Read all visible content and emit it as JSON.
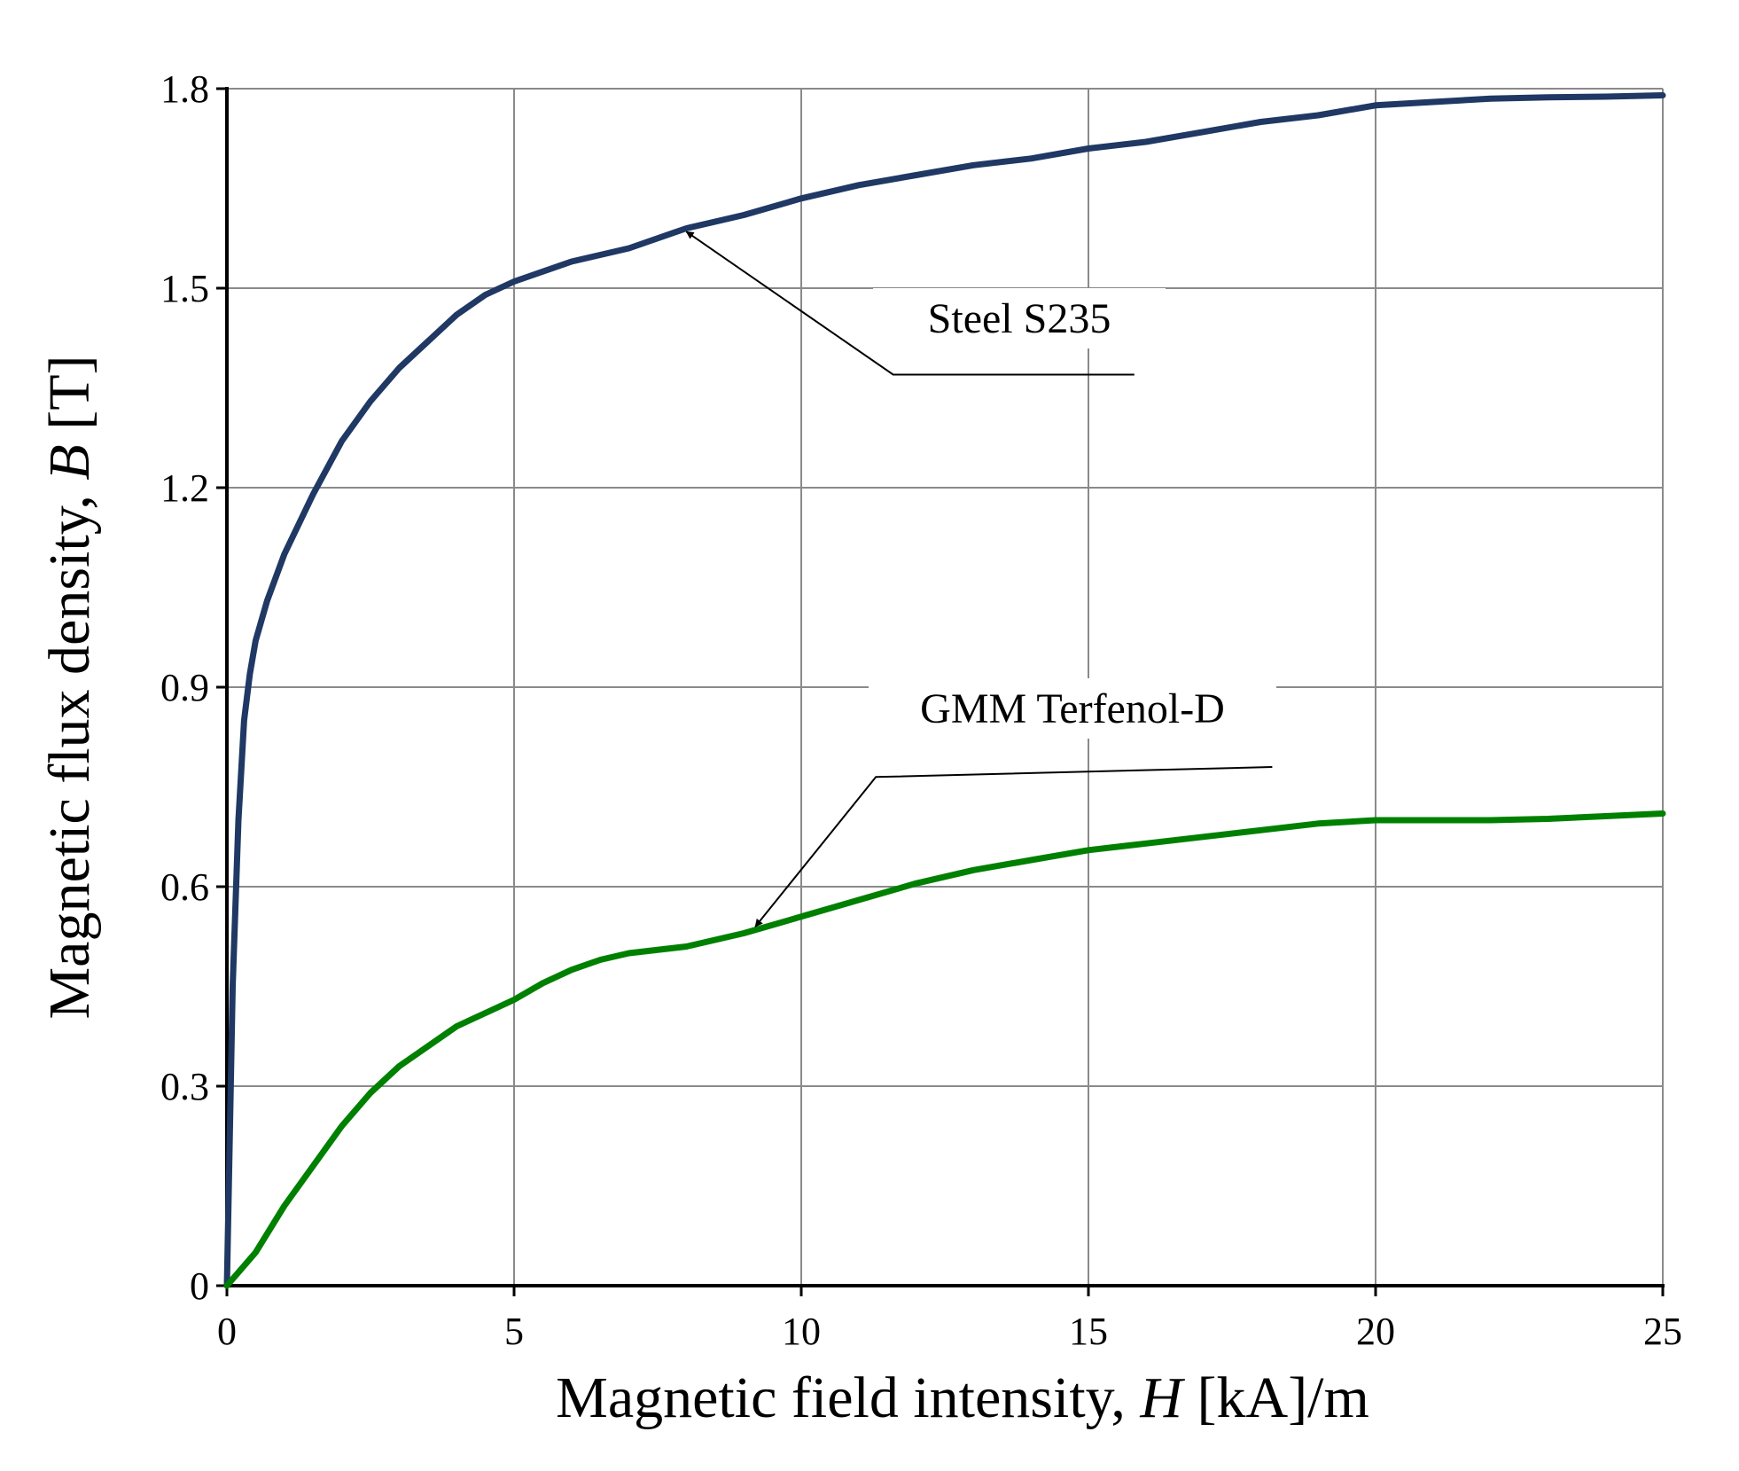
{
  "chart_data": {
    "type": "line",
    "title": "",
    "xlabel": {
      "prefix": "Magnetic field intensity, ",
      "var": "H",
      "suffix": " [kA]/m"
    },
    "ylabel": {
      "prefix": "Magnetic flux density, ",
      "var": "B",
      "suffix": " [T]"
    },
    "xlim": [
      0,
      25
    ],
    "ylim": [
      0,
      1.8
    ],
    "xticks": [
      0,
      5,
      10,
      15,
      20,
      25
    ],
    "yticks": [
      0,
      0.3,
      0.6,
      0.9,
      1.2,
      1.5,
      1.8
    ],
    "xtick_labels": [
      "0",
      "5",
      "10",
      "15",
      "20",
      "25"
    ],
    "ytick_labels": [
      "0",
      "0.3",
      "0.6",
      "0.9",
      "1.2",
      "1.5",
      "1.8"
    ],
    "grid": true,
    "series": [
      {
        "name": "Steel S235",
        "color": "#1f3864",
        "x": [
          0,
          0.1,
          0.2,
          0.3,
          0.4,
          0.5,
          0.7,
          1.0,
          1.5,
          2.0,
          2.5,
          3.0,
          3.5,
          4.0,
          4.5,
          5.0,
          6.0,
          7.0,
          8.0,
          9.0,
          10.0,
          11.0,
          12.0,
          13.0,
          14.0,
          15.0,
          16.0,
          17.0,
          18.0,
          19.0,
          20.0,
          21.0,
          22.0,
          23.0,
          24.0,
          25.0
        ],
        "y": [
          0,
          0.45,
          0.7,
          0.85,
          0.92,
          0.97,
          1.03,
          1.1,
          1.19,
          1.27,
          1.33,
          1.38,
          1.42,
          1.46,
          1.49,
          1.51,
          1.54,
          1.56,
          1.59,
          1.61,
          1.635,
          1.655,
          1.67,
          1.685,
          1.695,
          1.71,
          1.72,
          1.735,
          1.75,
          1.76,
          1.775,
          1.78,
          1.785,
          1.787,
          1.788,
          1.79
        ]
      },
      {
        "name": "GMM Terfenol-D",
        "color": "#008000",
        "x": [
          0,
          0.5,
          1.0,
          1.5,
          2.0,
          2.5,
          3.0,
          3.5,
          4.0,
          4.5,
          5.0,
          5.5,
          6.0,
          6.5,
          7.0,
          8.0,
          9.0,
          10.0,
          11.0,
          12.0,
          13.0,
          14.0,
          15.0,
          16.0,
          17.0,
          18.0,
          19.0,
          20.0,
          21.0,
          22.0,
          23.0,
          24.0,
          25.0
        ],
        "y": [
          0,
          0.05,
          0.12,
          0.18,
          0.24,
          0.29,
          0.33,
          0.36,
          0.39,
          0.41,
          0.43,
          0.455,
          0.475,
          0.49,
          0.5,
          0.51,
          0.53,
          0.555,
          0.58,
          0.605,
          0.625,
          0.64,
          0.655,
          0.665,
          0.675,
          0.685,
          0.695,
          0.7,
          0.7,
          0.7,
          0.702,
          0.706,
          0.71
        ]
      }
    ],
    "annotations": [
      {
        "text": "Steel S235",
        "target": [
          8.0,
          1.585
        ],
        "elbow": [
          11.6,
          1.37
        ],
        "end": [
          15.8,
          1.37
        ]
      },
      {
        "text": "GMM Terfenol-D",
        "target": [
          9.2,
          0.54
        ],
        "elbow": [
          11.3,
          0.765
        ],
        "end": [
          18.2,
          0.78
        ]
      }
    ]
  }
}
